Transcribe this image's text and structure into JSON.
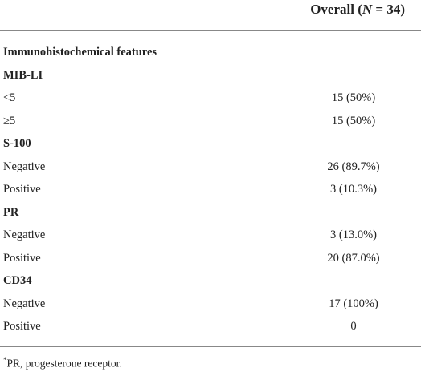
{
  "header": {
    "prefix": "Overall (",
    "italic": "N",
    "suffix": " = 34)"
  },
  "table": {
    "rows": [
      {
        "label": "Immunohistochemical features"
      },
      {
        "label": "MIB-LI"
      },
      {
        "label": "<5",
        "value": "15 (50%)"
      },
      {
        "label": "≥5",
        "value": "15 (50%)"
      },
      {
        "label": "S-100"
      },
      {
        "label": "Negative",
        "value": "26 (89.7%)"
      },
      {
        "label": "Positive",
        "value": "3 (10.3%)"
      },
      {
        "label": "PR"
      },
      {
        "label": "Negative",
        "value": "3 (13.0%)"
      },
      {
        "label": "Positive",
        "value": "20 (87.0%)"
      },
      {
        "label": "CD34"
      },
      {
        "label": "Negative",
        "value": "17 (100%)"
      },
      {
        "label": "Positive",
        "value": "0"
      }
    ]
  },
  "footnote": {
    "mark": "*",
    "text": "PR, progesterone receptor."
  }
}
